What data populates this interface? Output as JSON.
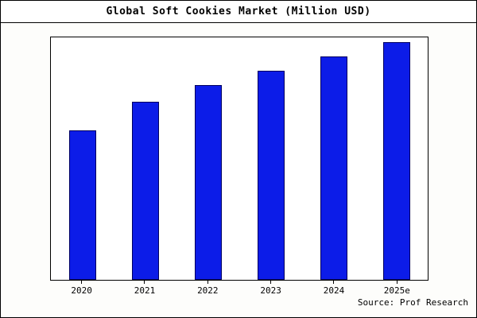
{
  "title": "Global Soft Cookies Market (Million USD)",
  "source": "Source: Prof Research",
  "chart_data": {
    "type": "bar",
    "title": "Global Soft Cookies Market (Million USD)",
    "categories": [
      "2020",
      "2021",
      "2022",
      "2023",
      "2024",
      "2025e"
    ],
    "values": [
      630,
      750,
      820,
      880,
      940,
      1000
    ],
    "xlabel": "",
    "ylabel": "",
    "ylim": [
      0,
      1020
    ],
    "grid": false,
    "legend_position": "none",
    "bar_color": "#0c1ce8",
    "bar_edge_color": "#000060",
    "plot_background": "#ffffff",
    "annotation": "Source: Prof Research"
  }
}
